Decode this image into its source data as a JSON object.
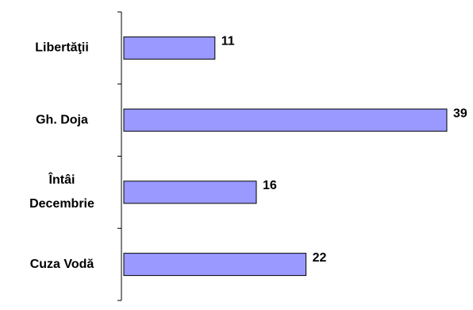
{
  "chart_data": {
    "type": "bar",
    "orientation": "horizontal",
    "categories": [
      "Libertăţii",
      "Gh. Doja",
      "Întâi Decembrie",
      "Cuza Vodă"
    ],
    "category_lines": [
      [
        "Libertăţii"
      ],
      [
        "Gh. Doja"
      ],
      [
        "Întâi",
        "Decembrie"
      ],
      [
        "Cuza Vodă"
      ]
    ],
    "values": [
      11,
      39,
      16,
      22
    ],
    "data_labels": [
      "11",
      "39",
      "16",
      "22"
    ],
    "title": "",
    "xlabel": "",
    "ylabel": "",
    "xlim": [
      0,
      39
    ],
    "grid": false,
    "legend": "none",
    "colors": {
      "bar_fill": "#9999ff",
      "bar_stroke": "#000000",
      "axis": "#000000"
    }
  }
}
